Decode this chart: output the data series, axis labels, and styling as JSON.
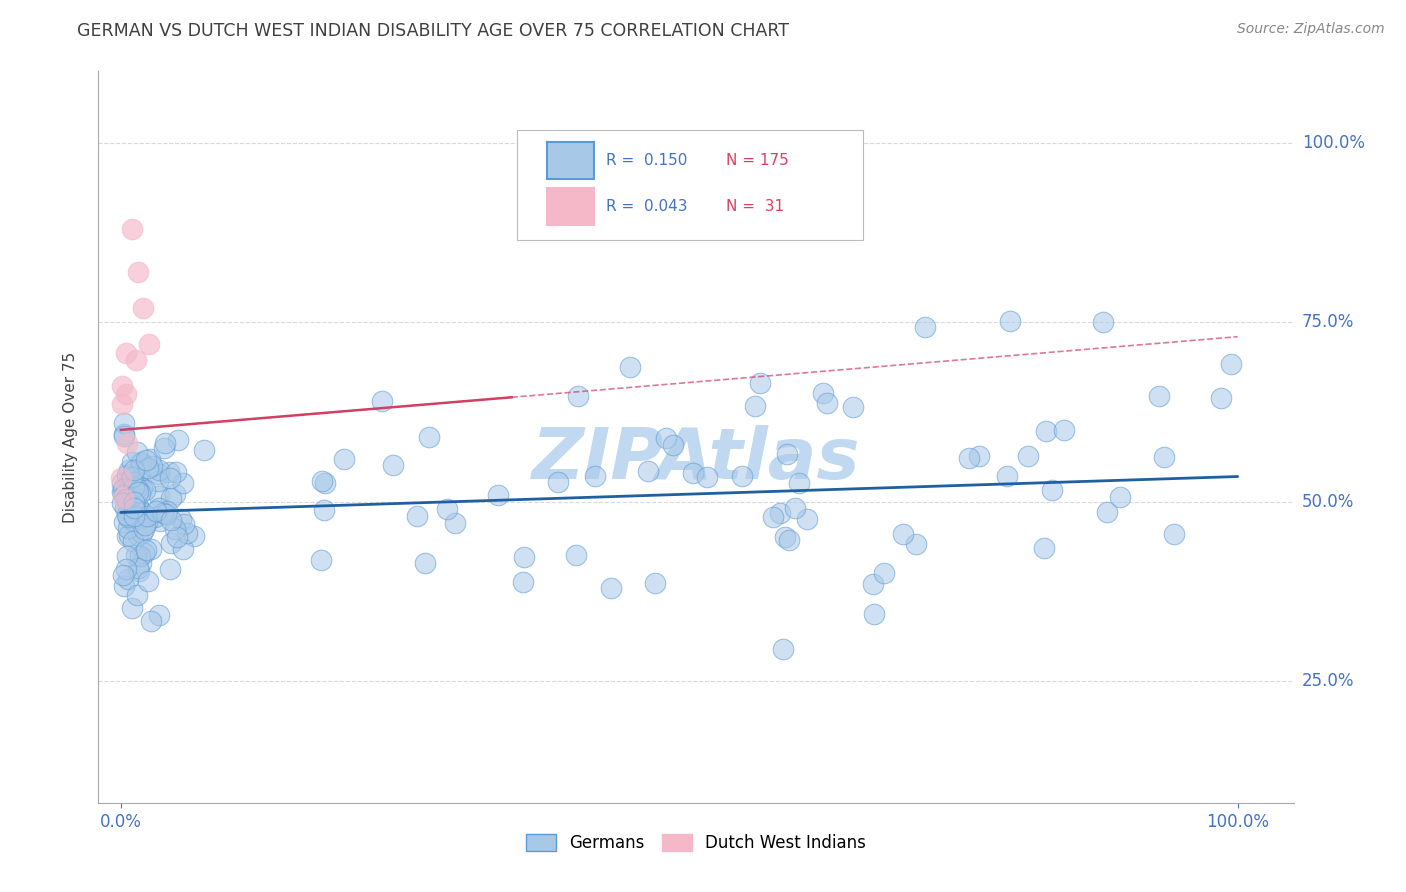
{
  "title": "GERMAN VS DUTCH WEST INDIAN DISABILITY AGE OVER 75 CORRELATION CHART",
  "source_text": "Source: ZipAtlas.com",
  "ylabel": "Disability Age Over 75",
  "R_german": 0.15,
  "N_german": 175,
  "R_dutch": 0.043,
  "N_dutch": 31,
  "xlim": [
    -0.02,
    1.05
  ],
  "ylim": [
    0.08,
    1.1
  ],
  "yticks": [
    0.25,
    0.5,
    0.75,
    1.0
  ],
  "ytick_labels": [
    "25.0%",
    "50.0%",
    "75.0%",
    "100.0%"
  ],
  "xtick_labels": [
    "0.0%",
    "100.0%"
  ],
  "german_color": "#a8c8e8",
  "german_edge_color": "#5b9bd5",
  "dutch_color": "#f4b8c8",
  "dutch_edge_color": "#f4b8c8",
  "german_line_color": "#2060a0",
  "dutch_line_color": "#d04060",
  "background_color": "#ffffff",
  "grid_color": "#d0d0d0",
  "watermark": "ZIPAtlas",
  "watermark_color": "#c0d8f0",
  "title_color": "#404040",
  "axis_label_color": "#404040",
  "tick_label_color": "#4472c4",
  "legend_r_color": "#4472c4",
  "legend_n_color": "#e04060",
  "source_color": "#888888"
}
